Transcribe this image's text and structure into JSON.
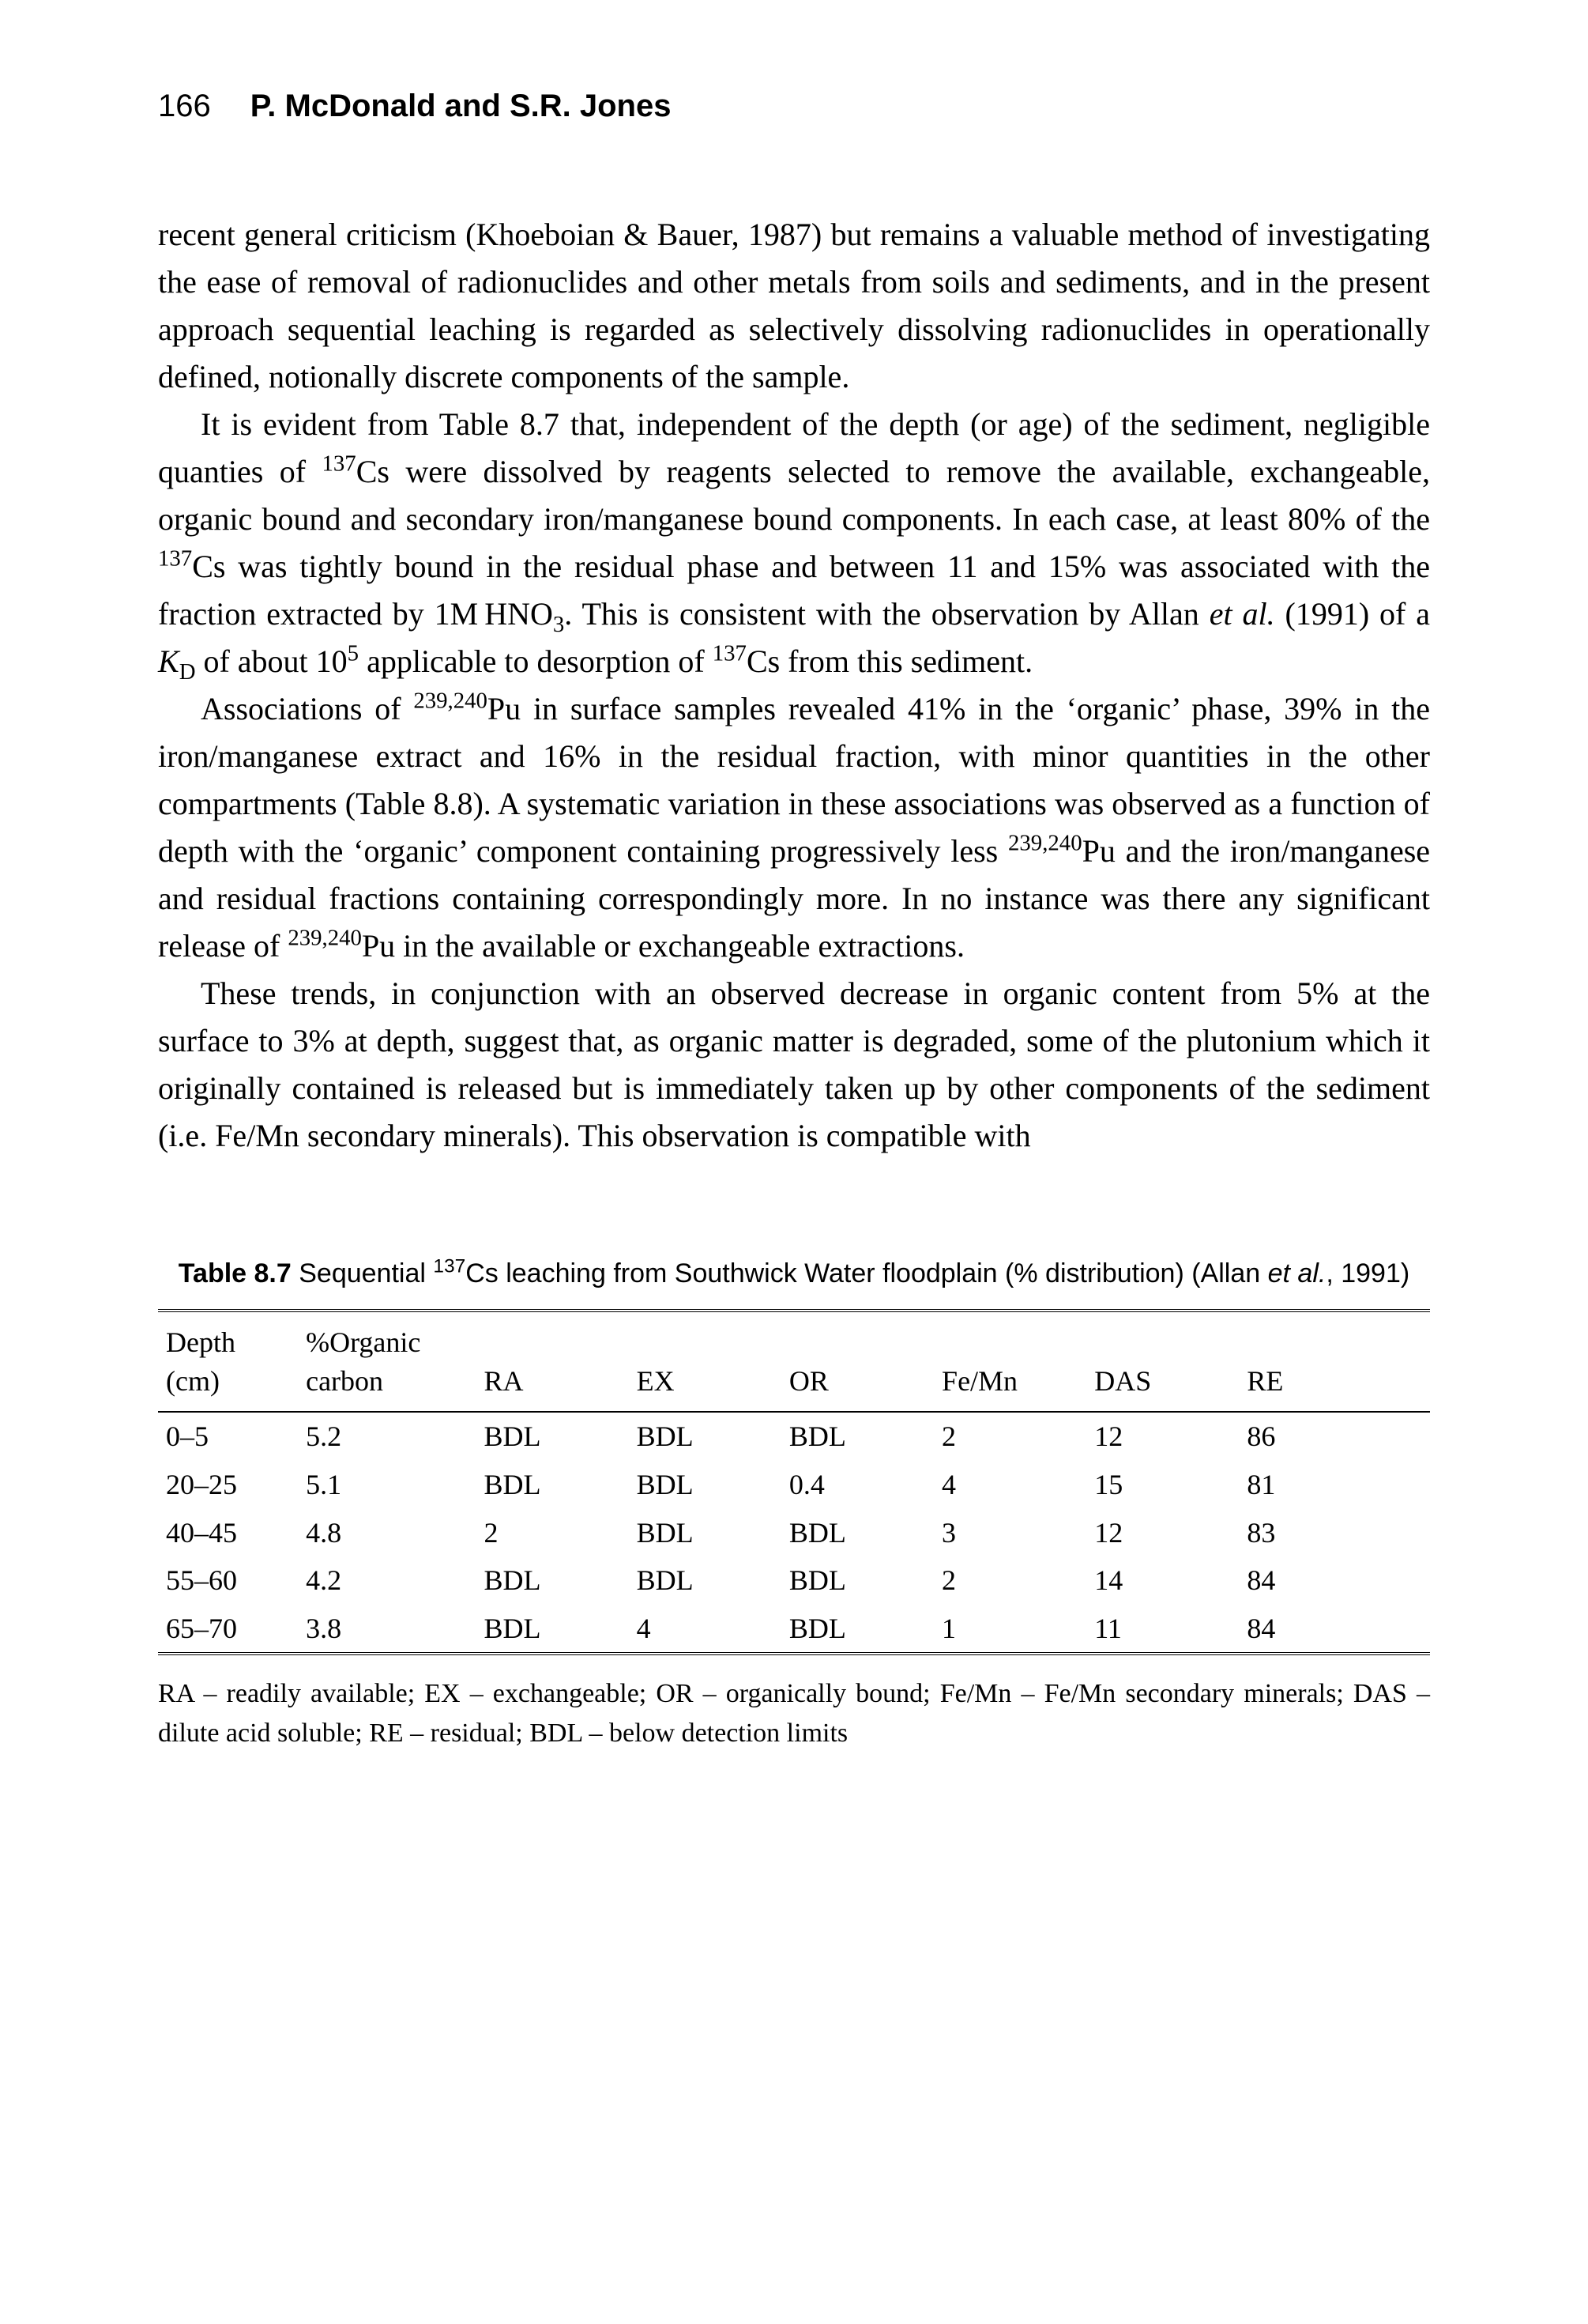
{
  "running_head": {
    "page_number": "166",
    "authors": "P. McDonald and S.R. Jones"
  },
  "paragraphs": {
    "p1": "recent general criticism (Khoeboian & Bauer, 1987) but remains a valuable method of investigating the ease of removal of radionuclides and other metals from soils and sediments, and in the present approach sequential leaching is regarded as selectively dissolving radionuclides in operationally defined, notionally discrete components of the sample.",
    "p2_a": "It is evident from Table 8.7 that, independent of the depth (or age) of the sediment, negligible quanties of ",
    "p2_iso1": "137",
    "p2_b": "Cs were dissolved by reagents selected to remove the available, exchangeable, organic bound and secondary iron/manganese bound components. In each case, at least 80% of the ",
    "p2_iso2": "137",
    "p2_c": "Cs was tightly bound in the residual phase and between 11 and 15% was associated with the fraction extracted by 1M HNO",
    "p2_sub1": "3",
    "p2_d": ". This is consistent with the observation by Allan ",
    "p2_etal": "et al.",
    "p2_e": " (1991) of a ",
    "p2_kd_k": "K",
    "p2_kd_d": "D",
    "p2_f": " of about 10",
    "p2_sup5": "5",
    "p2_g": " applicable to desorption of ",
    "p2_iso3": "137",
    "p2_h": "Cs from this sediment.",
    "p3_a": "Associations of ",
    "p3_iso1": "239,240",
    "p3_b": "Pu in surface samples revealed 41% in the ‘organic’ phase, 39% in the iron/manganese extract and 16% in the residual fraction, with minor quantities in the other compartments (Table 8.8). A systematic variation in these associations was observed as a function of depth with the ‘organic’ component containing progressively less ",
    "p3_iso2": "239,240",
    "p3_c": "Pu and the iron/manganese and residual fractions containing correspondingly more. In no instance was there any significant release of ",
    "p3_iso3": "239,240",
    "p3_d": "Pu in the available or exchangeable extractions.",
    "p4": "These trends, in conjunction with an observed decrease in organic content from 5% at the surface to 3% at depth, suggest that, as organic matter is degraded, some of the plutonium which it originally contained is released but is immediately taken up by other components of the sediment (i.e. Fe/Mn secondary minerals). This observation is compatible with"
  },
  "table": {
    "caption_bold": "Table 8.7",
    "caption_a": " Sequential ",
    "caption_iso": "137",
    "caption_b": "Cs leaching from Southwick Water floodplain (% distribution) (Allan ",
    "caption_etal": "et al.",
    "caption_c": ", 1991)",
    "columns": {
      "depth_l1": "Depth",
      "depth_l2": "(cm)",
      "org_l1": "%Organic",
      "org_l2": "carbon",
      "ra": "RA",
      "ex": "EX",
      "or": "OR",
      "femn": "Fe/Mn",
      "das": "DAS",
      "re": "RE"
    },
    "rows": [
      {
        "depth": "0–5",
        "org": "5.2",
        "ra": "BDL",
        "ex": "BDL",
        "or": "BDL",
        "femn": "2",
        "das": "12",
        "re": "86"
      },
      {
        "depth": "20–25",
        "org": "5.1",
        "ra": "BDL",
        "ex": "BDL",
        "or": "0.4",
        "femn": "4",
        "das": "15",
        "re": "81"
      },
      {
        "depth": "40–45",
        "org": "4.8",
        "ra": "2",
        "ex": "BDL",
        "or": "BDL",
        "femn": "3",
        "das": "12",
        "re": "83"
      },
      {
        "depth": "55–60",
        "org": "4.2",
        "ra": "BDL",
        "ex": "BDL",
        "or": "BDL",
        "femn": "2",
        "das": "14",
        "re": "84"
      },
      {
        "depth": "65–70",
        "org": "3.8",
        "ra": "BDL",
        "ex": "4",
        "or": "BDL",
        "femn": "1",
        "das": "11",
        "re": "84"
      }
    ],
    "note": "RA – readily available; EX – exchangeable; OR – organically bound; Fe/Mn – Fe/Mn secondary minerals; DAS – dilute acid soluble; RE – residual; BDL – below detection limits"
  },
  "style": {
    "font_body_pt": 40,
    "font_caption_pt": 34,
    "font_table_pt": 36,
    "text_color": "#000000",
    "background_color": "#ffffff",
    "rule_color": "#000000"
  }
}
